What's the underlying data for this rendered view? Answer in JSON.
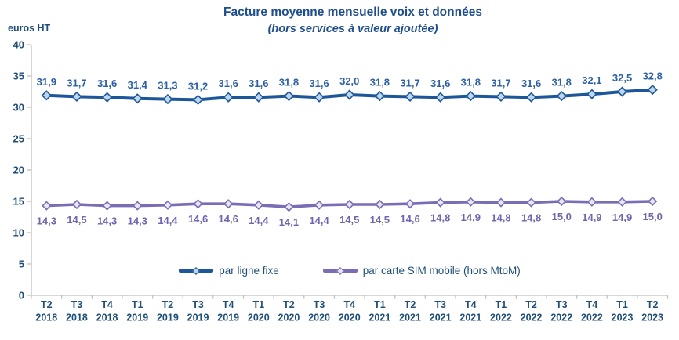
{
  "page": {
    "background": "#FFFFFF"
  },
  "chart_data": {
    "type": "line",
    "title": "Facture moyenne mensuelle voix et données",
    "subtitle": "(hors services à valeur ajoutée)",
    "ylabel": "euros HT",
    "xlabel": "",
    "ylim": [
      0,
      40
    ],
    "y_ticks": [
      0,
      5,
      10,
      15,
      20,
      25,
      30,
      35,
      40
    ],
    "grid": false,
    "legend_position": "bottom-center-inside",
    "axis_color": "#BFBFBF",
    "text_color": "#1F4E79",
    "title_color": "#1F4E8C",
    "categories": [
      [
        "T2",
        "2018"
      ],
      [
        "T3",
        "2018"
      ],
      [
        "T4",
        "2018"
      ],
      [
        "T1",
        "2019"
      ],
      [
        "T2",
        "2019"
      ],
      [
        "T3",
        "2019"
      ],
      [
        "T4",
        "2019"
      ],
      [
        "T1",
        "2020"
      ],
      [
        "T2",
        "2020"
      ],
      [
        "T3",
        "2020"
      ],
      [
        "T4",
        "2020"
      ],
      [
        "T1",
        "2021"
      ],
      [
        "T2",
        "2021"
      ],
      [
        "T3",
        "2021"
      ],
      [
        "T4",
        "2021"
      ],
      [
        "T1",
        "2022"
      ],
      [
        "T2",
        "2022"
      ],
      [
        "T3",
        "2022"
      ],
      [
        "T4",
        "2022"
      ],
      [
        "T1",
        "2023"
      ],
      [
        "T2",
        "2023"
      ]
    ],
    "series": [
      {
        "name": "par ligne fixe",
        "color": "#1E5799",
        "marker_fill": "#BDD7EE",
        "label_color": "#2C5FA5",
        "values": [
          31.9,
          31.7,
          31.6,
          31.4,
          31.3,
          31.2,
          31.6,
          31.6,
          31.8,
          31.6,
          32.0,
          31.8,
          31.7,
          31.6,
          31.8,
          31.7,
          31.6,
          31.8,
          32.1,
          32.5,
          32.8
        ],
        "labels": [
          "31,9",
          "31,7",
          "31,6",
          "31,4",
          "31,3",
          "31,2",
          "31,6",
          "31,6",
          "31,8",
          "31,6",
          "32,0",
          "31,8",
          "31,7",
          "31,6",
          "31,8",
          "31,7",
          "31,6",
          "31,8",
          "32,1",
          "32,5",
          "32,8"
        ]
      },
      {
        "name": "par carte SIM mobile (hors MtoM)",
        "color": "#7A6DB5",
        "marker_fill": "#EAE7F5",
        "label_color": "#6F64AD",
        "values": [
          14.3,
          14.5,
          14.3,
          14.3,
          14.4,
          14.6,
          14.6,
          14.4,
          14.1,
          14.4,
          14.5,
          14.5,
          14.6,
          14.8,
          14.9,
          14.8,
          14.8,
          15.0,
          14.9,
          14.9,
          15.0
        ],
        "labels": [
          "14,3",
          "14,5",
          "14,3",
          "14,3",
          "14,4",
          "14,6",
          "14,6",
          "14,4",
          "14,1",
          "14,4",
          "14,5",
          "14,5",
          "14,6",
          "14,8",
          "14,9",
          "14,8",
          "14,8",
          "15,0",
          "14,9",
          "14,9",
          "15,0"
        ]
      }
    ]
  }
}
